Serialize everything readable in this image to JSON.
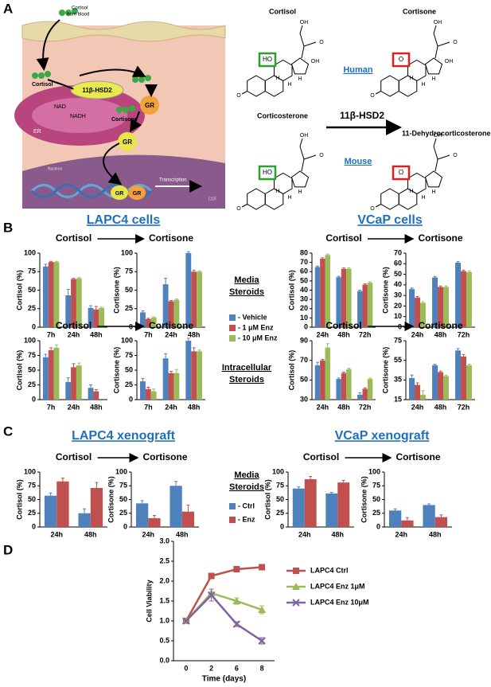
{
  "panel_a": {
    "label": "A",
    "cell": {
      "blood": [
        "Cortisol",
        "from blood"
      ],
      "cortisol": "Cortisol",
      "enzyme": "11β-HSD2",
      "nad": "NAD",
      "nadh": "NADH",
      "cortisone": "Cortisone",
      "er": "ER",
      "gr": [
        "GR",
        "GR"
      ],
      "nucleus": "Nucleus",
      "transcription": "Transcription",
      "dna_gr": [
        "GR",
        "GR"
      ],
      "credit": "CCF"
    },
    "reaction": {
      "human": "Human",
      "mouse": "Mouse",
      "enzyme": "11β-HSD2"
    },
    "structures": [
      {
        "name": "Cortisol",
        "box": "HO",
        "box_color": "#2ca02c",
        "atoms": {
          "oh21": "OH",
          "o20": "O",
          "oh17": "OH",
          "h9": "H",
          "h8": "H",
          "h14": "H",
          "o3": "O"
        }
      },
      {
        "name": "Cortisone",
        "box": "O",
        "box_color": "#e02020",
        "atoms": {
          "oh21": "OH",
          "o20": "O",
          "oh17": "OH",
          "h9": "H",
          "h8": "H",
          "h14": "H",
          "o3": "O"
        }
      },
      {
        "name": "Corticosterone",
        "box": "HO",
        "box_color": "#2ca02c",
        "atoms": {
          "oh21": "OH",
          "o20": "O",
          "h9": "H",
          "h8": "H",
          "h14": "H",
          "o3": "O"
        }
      },
      {
        "name": "11-Dehydrocorticosterone",
        "box": "O",
        "box_color": "#e02020",
        "atoms": {
          "oh21": "OH",
          "o20": "O",
          "h9": "H",
          "h8": "H",
          "h14": "H",
          "o3": "O"
        }
      }
    ]
  },
  "panel_b": {
    "label": "B",
    "titles": [
      "LAPC4 cells",
      "VCaP cells"
    ],
    "row_labels": [
      [
        "Media",
        "Steroids"
      ],
      [
        "Intracellular",
        "Steroids"
      ]
    ],
    "legend": [
      {
        "name": "- Vehicle",
        "color": "#4f81bd"
      },
      {
        "name": "- 1 μM Enz",
        "color": "#c0504d"
      },
      {
        "name": "- 10 μM Enz",
        "color": "#9bbb59"
      }
    ]
  },
  "panel_c": {
    "label": "C",
    "titles": [
      "LAPC4 xenograft",
      "VCaP xenograft"
    ],
    "row_labels": [
      [
        "Media",
        "Steroids"
      ]
    ],
    "legend": [
      {
        "name": "- Ctrl",
        "color": "#4f81bd"
      },
      {
        "name": "- Enz",
        "color": "#c0504d"
      }
    ]
  },
  "panel_d": {
    "label": "D"
  },
  "chart_data": [
    {
      "type": "bar",
      "title": "Cortisol",
      "y_label": "Cortisol (%)",
      "categories": [
        "7h",
        "24h",
        "48h"
      ],
      "ylim": [
        0,
        100
      ],
      "yticks": [
        0,
        25,
        50,
        75,
        100
      ],
      "series": [
        {
          "values": [
            82,
            43,
            26
          ],
          "errors": [
            3,
            8,
            3
          ]
        },
        {
          "values": [
            88,
            65,
            24
          ],
          "errors": [
            1,
            1,
            4
          ]
        },
        {
          "values": [
            88,
            66,
            26
          ],
          "errors": [
            1,
            1,
            1
          ]
        }
      ]
    },
    {
      "type": "bar",
      "title": "Cortisone",
      "y_label": "Cortisone (%)",
      "categories": [
        "7h",
        "24h",
        "48h"
      ],
      "ylim": [
        0,
        100
      ],
      "yticks": [
        0,
        25,
        50,
        75,
        100
      ],
      "series": [
        {
          "values": [
            20,
            58,
            100
          ],
          "errors": [
            2,
            8,
            2
          ]
        },
        {
          "values": [
            11,
            35,
            75
          ],
          "errors": [
            1,
            1,
            2
          ]
        },
        {
          "values": [
            13,
            37,
            75
          ],
          "errors": [
            1,
            1,
            1
          ]
        }
      ]
    },
    {
      "type": "bar",
      "title": "Cortisol",
      "y_label": "Cortisol (%)",
      "categories": [
        "7h",
        "24h",
        "48h"
      ],
      "ylim": [
        0,
        100
      ],
      "yticks": [
        0,
        25,
        50,
        75,
        100
      ],
      "series": [
        {
          "values": [
            72,
            30,
            20
          ],
          "errors": [
            5,
            7,
            5
          ]
        },
        {
          "values": [
            84,
            55,
            14
          ],
          "errors": [
            4,
            6,
            3
          ]
        },
        {
          "values": [
            88,
            58,
            null
          ],
          "errors": [
            5,
            4,
            null
          ]
        }
      ]
    },
    {
      "type": "bar",
      "title": "Cortisone",
      "y_label": "Cortisone (%)",
      "categories": [
        "7h",
        "24h",
        "48h"
      ],
      "ylim": [
        0,
        100
      ],
      "yticks": [
        0,
        25,
        50,
        75,
        100
      ],
      "series": [
        {
          "values": [
            31,
            70,
            100
          ],
          "errors": [
            5,
            8,
            4
          ]
        },
        {
          "values": [
            18,
            45,
            82
          ],
          "errors": [
            3,
            3,
            6
          ]
        },
        {
          "values": [
            14,
            45,
            82
          ],
          "errors": [
            4,
            6,
            2
          ]
        }
      ]
    },
    {
      "type": "bar",
      "title": "Cortisol",
      "y_label": "Cortisol (%)",
      "categories": [
        "24h",
        "48h",
        "72h"
      ],
      "ylim": [
        0,
        80
      ],
      "yticks": [
        0,
        10,
        20,
        30,
        40,
        50,
        60,
        70,
        80
      ],
      "series": [
        {
          "values": [
            65,
            54,
            39
          ],
          "errors": [
            1,
            1,
            1
          ]
        },
        {
          "values": [
            74,
            63,
            46
          ],
          "errors": [
            1,
            1,
            1
          ]
        },
        {
          "values": [
            78,
            63,
            48
          ],
          "errors": [
            1,
            1,
            1
          ]
        }
      ]
    },
    {
      "type": "bar",
      "title": "Cortisone",
      "y_label": "Cortisone (%)",
      "categories": [
        "24h",
        "48h",
        "72h"
      ],
      "ylim": [
        0,
        70
      ],
      "yticks": [
        0,
        10,
        20,
        30,
        40,
        50,
        60,
        70
      ],
      "series": [
        {
          "values": [
            36,
            47,
            61
          ],
          "errors": [
            1,
            1,
            1
          ]
        },
        {
          "values": [
            28,
            38,
            53
          ],
          "errors": [
            1,
            1,
            1
          ]
        },
        {
          "values": [
            23,
            38,
            52
          ],
          "errors": [
            1,
            1,
            1
          ]
        }
      ]
    },
    {
      "type": "bar",
      "title": "Cortisol",
      "y_label": "Cortisol (%)",
      "categories": [
        "24h",
        "48h",
        "72h"
      ],
      "ylim": [
        30,
        90
      ],
      "yticks": [
        30,
        50,
        70,
        90
      ],
      "series": [
        {
          "values": [
            65,
            51,
            35
          ],
          "errors": [
            3,
            1,
            2
          ]
        },
        {
          "values": [
            70,
            57,
            41
          ],
          "errors": [
            1,
            1,
            1
          ]
        },
        {
          "values": [
            83,
            61,
            51
          ],
          "errors": [
            4,
            1,
            1
          ]
        }
      ]
    },
    {
      "type": "bar",
      "title": "Cortisone",
      "y_label": "Cortisone (%)",
      "categories": [
        "24h",
        "48h",
        "72h"
      ],
      "ylim": [
        15,
        75
      ],
      "yticks": [
        15,
        35,
        55,
        75
      ],
      "series": [
        {
          "values": [
            37,
            50,
            65
          ],
          "errors": [
            3,
            1,
            2
          ]
        },
        {
          "values": [
            30,
            43,
            59
          ],
          "errors": [
            2,
            1,
            2
          ]
        },
        {
          "values": [
            20,
            39,
            50
          ],
          "errors": [
            4,
            1,
            1
          ]
        }
      ]
    },
    {
      "type": "bar",
      "title": "Cortisol",
      "y_label": "Cortisol (%)",
      "categories": [
        "24h",
        "48h"
      ],
      "ylim": [
        0,
        100
      ],
      "yticks": [
        0,
        25,
        50,
        75,
        100
      ],
      "series": [
        {
          "values": [
            57,
            25
          ],
          "errors": [
            5,
            8
          ]
        },
        {
          "values": [
            83,
            71
          ],
          "errors": [
            6,
            10
          ]
        }
      ]
    },
    {
      "type": "bar",
      "title": "Cortisone",
      "y_label": "Cortisone (%)",
      "categories": [
        "24h",
        "48h"
      ],
      "ylim": [
        0,
        100
      ],
      "yticks": [
        0,
        25,
        50,
        75,
        100
      ],
      "series": [
        {
          "values": [
            43,
            75
          ],
          "errors": [
            5,
            8
          ]
        },
        {
          "values": [
            16,
            28
          ],
          "errors": [
            5,
            12
          ]
        }
      ]
    },
    {
      "type": "bar",
      "title": "Cortisol",
      "y_label": "Cortisol (%)",
      "categories": [
        "24h",
        "48h"
      ],
      "ylim": [
        0,
        100
      ],
      "yticks": [
        0,
        25,
        50,
        75,
        100
      ],
      "series": [
        {
          "values": [
            70,
            61
          ],
          "errors": [
            3,
            2
          ]
        },
        {
          "values": [
            87,
            81
          ],
          "errors": [
            5,
            4
          ]
        }
      ]
    },
    {
      "type": "bar",
      "title": "Cortisone",
      "y_label": "Cortisone (%)",
      "categories": [
        "24h",
        "48h"
      ],
      "ylim": [
        0,
        100
      ],
      "yticks": [
        0,
        25,
        50,
        75,
        100
      ],
      "series": [
        {
          "values": [
            30,
            40
          ],
          "errors": [
            3,
            2
          ]
        },
        {
          "values": [
            12,
            18
          ],
          "errors": [
            5,
            4
          ]
        }
      ]
    },
    {
      "type": "line",
      "y_label": "Cell Viability",
      "x_label": "Time (days)",
      "categories": [
        "0",
        "2",
        "6",
        "8"
      ],
      "ylim": [
        0,
        3
      ],
      "yticks": [
        {
          "value": 0,
          "label": "0.0"
        },
        {
          "value": 0.5,
          "label": "0.5"
        },
        {
          "value": 1,
          "label": "1.0"
        },
        {
          "value": 1.5,
          "label": "1.5"
        },
        {
          "value": 2,
          "label": "2.0"
        },
        {
          "value": 2.5,
          "label": "2.5"
        },
        {
          "value": 3,
          "label": "3.0"
        }
      ],
      "series": [
        {
          "name": "LAPC4 Ctrl",
          "color": "#c0504d",
          "marker": "square",
          "values": [
            1.0,
            2.13,
            2.3,
            2.35
          ],
          "errors": [
            0.03,
            0.06,
            0.06,
            0.04
          ]
        },
        {
          "name": "LAPC4 Enz 1μM",
          "color": "#9bbb59",
          "marker": "triangle",
          "values": [
            1.0,
            1.7,
            1.5,
            1.28
          ],
          "errors": [
            0.03,
            0.1,
            0.08,
            0.1
          ]
        },
        {
          "name": "LAPC4 Enz 10μM",
          "color": "#8064a2",
          "marker": "x",
          "values": [
            1.0,
            1.65,
            0.92,
            0.5
          ],
          "errors": [
            0.03,
            0.15,
            0.06,
            0.08
          ]
        }
      ]
    }
  ]
}
